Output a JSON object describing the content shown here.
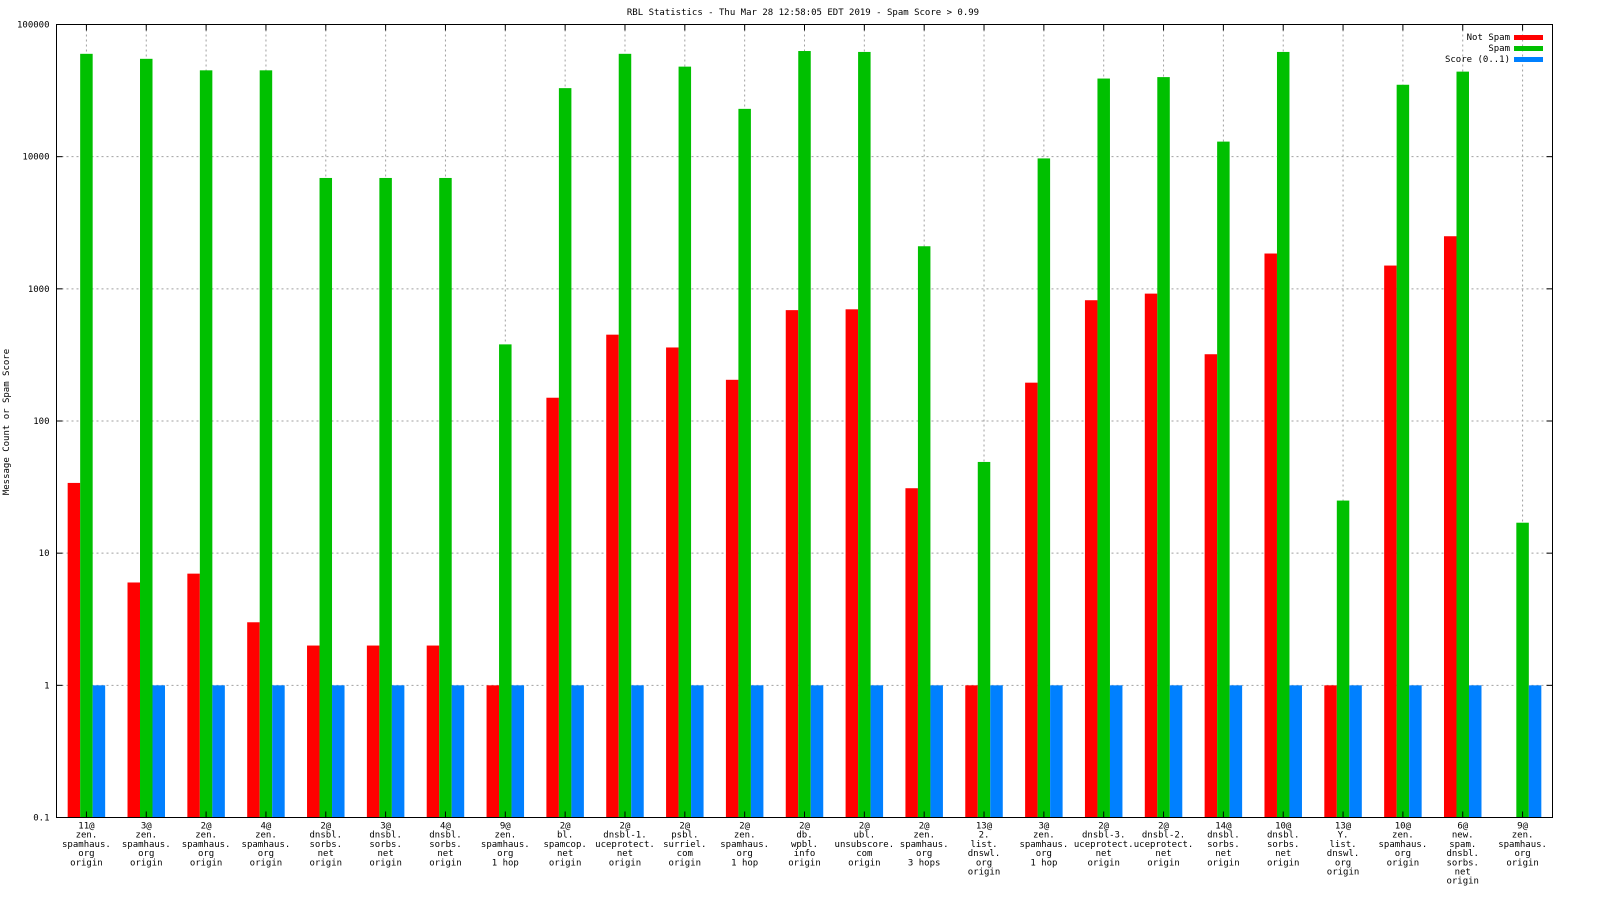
{
  "chart_data": {
    "type": "bar",
    "title": "RBL Statistics - Thu Mar 28 12:58:05 EDT 2019 - Spam Score > 0.99",
    "xlabel": "",
    "ylabel": "Message Count or Spam Score",
    "yscale": "log",
    "ylim": [
      0.1,
      100000
    ],
    "yticks": [
      {
        "value": 0.1,
        "label": "0.1"
      },
      {
        "value": 1,
        "label": "1"
      },
      {
        "value": 10,
        "label": "10"
      },
      {
        "value": 100,
        "label": "100"
      },
      {
        "value": 1000,
        "label": "1000"
      },
      {
        "value": 10000,
        "label": "10000"
      },
      {
        "value": 100000,
        "label": "100000"
      }
    ],
    "grid": true,
    "legend_position": "top-right",
    "categories": [
      [
        "11@",
        "zen.",
        "spamhaus.",
        "org",
        "origin"
      ],
      [
        "3@",
        "zen.",
        "spamhaus.",
        "org",
        "origin"
      ],
      [
        "2@",
        "zen.",
        "spamhaus.",
        "org",
        "origin"
      ],
      [
        "4@",
        "zen.",
        "spamhaus.",
        "org",
        "origin"
      ],
      [
        "2@",
        "dnsbl.",
        "sorbs.",
        "net",
        "origin"
      ],
      [
        "3@",
        "dnsbl.",
        "sorbs.",
        "net",
        "origin"
      ],
      [
        "4@",
        "dnsbl.",
        "sorbs.",
        "net",
        "origin"
      ],
      [
        "9@",
        "zen.",
        "spamhaus.",
        "org",
        "1 hop"
      ],
      [
        "2@",
        "bl.",
        "spamcop.",
        "net",
        "origin"
      ],
      [
        "2@",
        "dnsbl-1.",
        "uceprotect.",
        "net",
        "origin"
      ],
      [
        "2@",
        "psbl.",
        "surriel.",
        "com",
        "origin"
      ],
      [
        "2@",
        "zen.",
        "spamhaus.",
        "org",
        "1 hop"
      ],
      [
        "2@",
        "db.",
        "wpbl.",
        "info",
        "origin"
      ],
      [
        "2@",
        "ubl.",
        "unsubscore.",
        "com",
        "origin"
      ],
      [
        "2@",
        "zen.",
        "spamhaus.",
        "org",
        "3 hops"
      ],
      [
        "13@",
        "2.",
        "list.",
        "dnswl.",
        "org",
        "origin"
      ],
      [
        "3@",
        "zen.",
        "spamhaus.",
        "org",
        "1 hop"
      ],
      [
        "2@",
        "dnsbl-3.",
        "uceprotect.",
        "net",
        "origin"
      ],
      [
        "2@",
        "dnsbl-2.",
        "uceprotect.",
        "net",
        "origin"
      ],
      [
        "14@",
        "dnsbl.",
        "sorbs.",
        "net",
        "origin"
      ],
      [
        "10@",
        "dnsbl.",
        "sorbs.",
        "net",
        "origin"
      ],
      [
        "13@",
        "Y.",
        "list.",
        "dnswl.",
        "org",
        "origin"
      ],
      [
        "10@",
        "zen.",
        "spamhaus.",
        "org",
        "origin"
      ],
      [
        "6@",
        "new.",
        "spam.",
        "dnsbl.",
        "sorbs.",
        "net",
        "origin"
      ],
      [
        "9@",
        "zen.",
        "spamhaus.",
        "org",
        "origin"
      ]
    ],
    "series": [
      {
        "name": "Not Spam",
        "color": "#ff0000",
        "values": [
          34,
          6,
          7,
          3,
          2,
          2,
          2,
          1,
          150,
          450,
          360,
          205,
          690,
          700,
          31,
          1,
          195,
          820,
          920,
          320,
          1850,
          1,
          1500,
          2500,
          null
        ]
      },
      {
        "name": "Spam",
        "color": "#00c000",
        "values": [
          60000,
          55000,
          45000,
          45000,
          6900,
          6900,
          6900,
          380,
          33000,
          60000,
          48000,
          23000,
          63000,
          62000,
          2100,
          49,
          9700,
          39000,
          40000,
          13000,
          62000,
          25,
          35000,
          44000,
          17
        ]
      },
      {
        "name": "Score (0..1)",
        "color": "#0080ff",
        "values": [
          1,
          1,
          1,
          1,
          1,
          1,
          1,
          1,
          1,
          1,
          1,
          1,
          1,
          1,
          1,
          1,
          1,
          1,
          1,
          1,
          1,
          1,
          1,
          1,
          1
        ]
      }
    ]
  }
}
